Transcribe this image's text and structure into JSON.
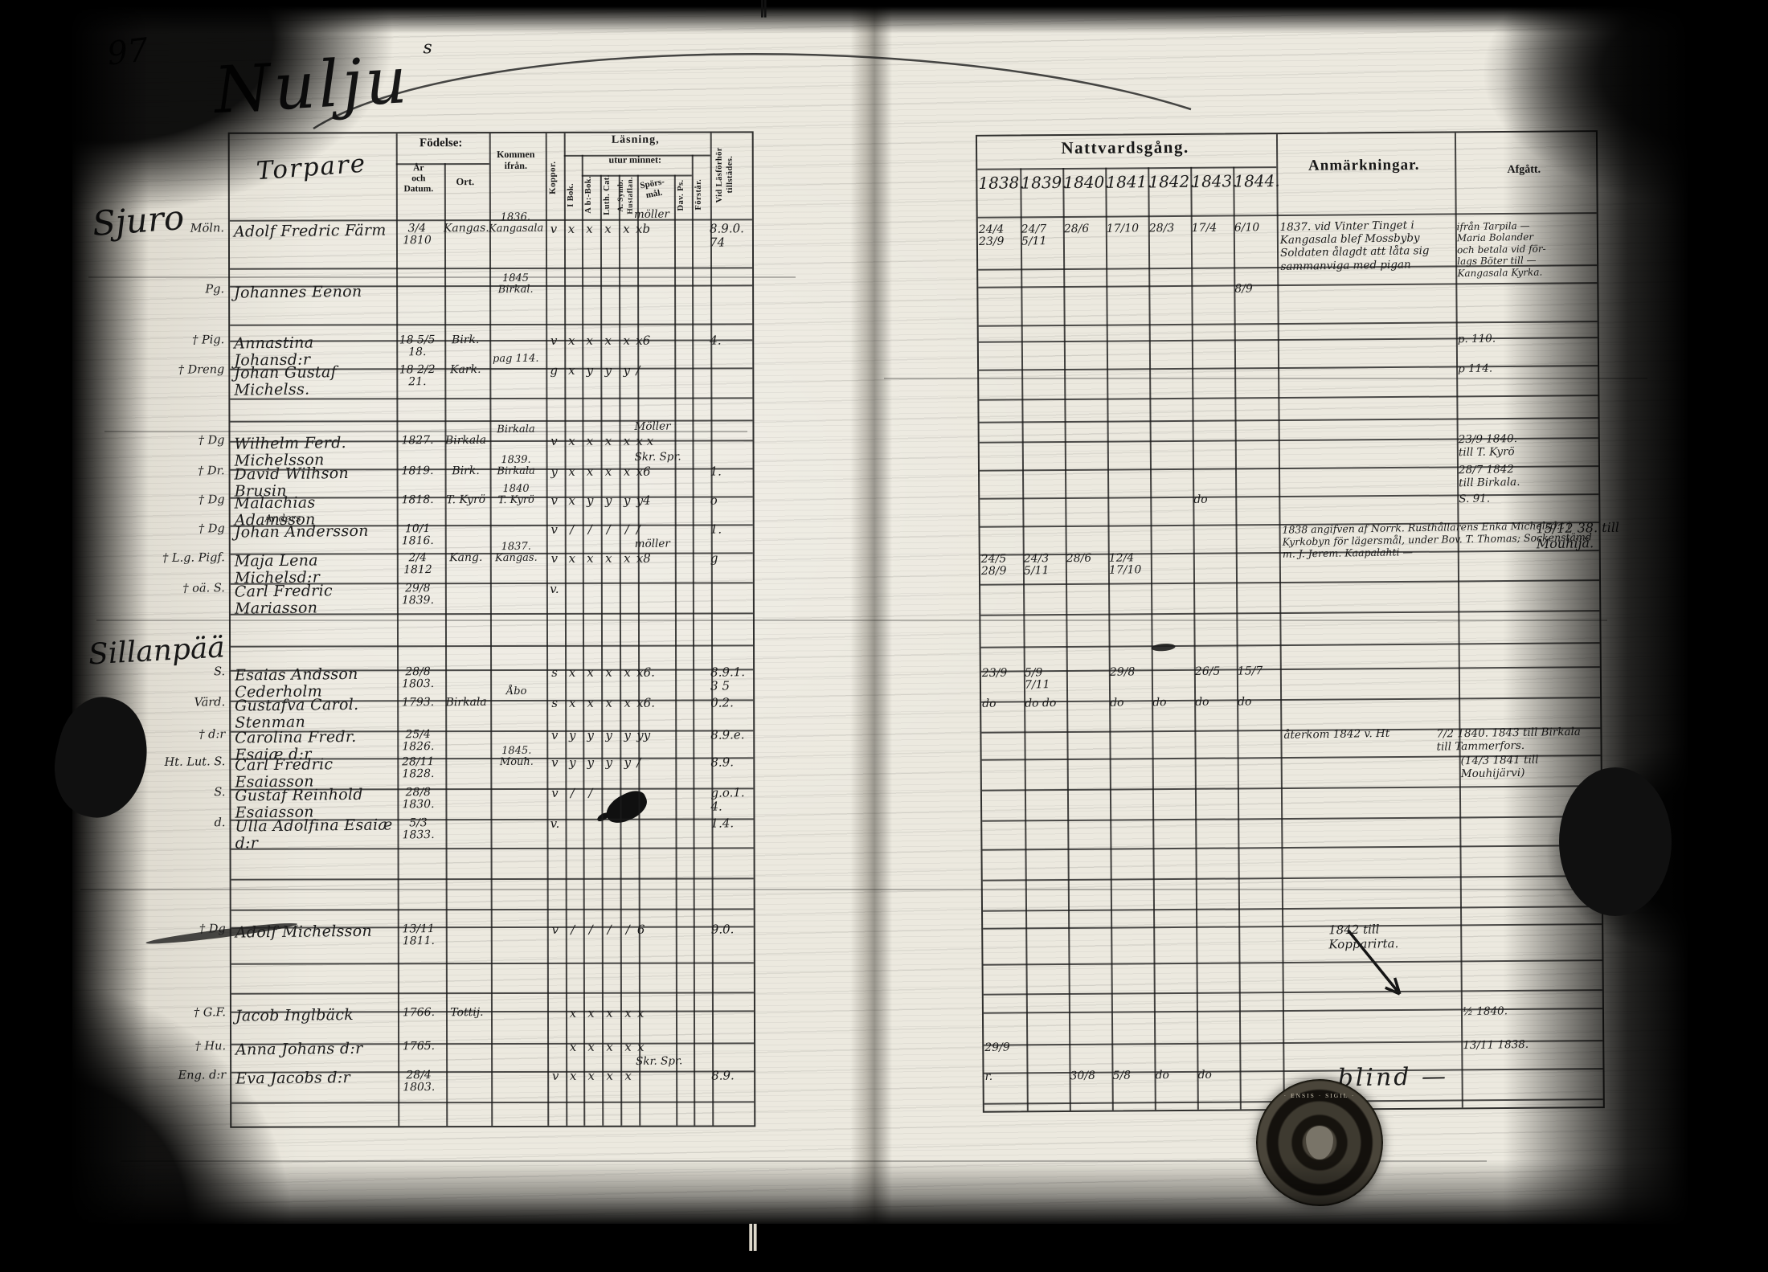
{
  "page": {
    "number": "97",
    "title": "Nulju",
    "title_sup": "s",
    "spine_mark_top": "‖",
    "spine_mark_bottom": "‖"
  },
  "left_table": {
    "section1": "Sjuro",
    "section2": "Sillanpää",
    "headers": {
      "group": "Torpare",
      "fodelse": "Födelse:",
      "ar": "År\noch\nDatum.",
      "ort": "Ort.",
      "kommen": "Kommen\nifrån.",
      "koppor": "Koppor.",
      "lasning": "Läsning,",
      "utur": "utur minnet:",
      "ibok": "I Bok.",
      "abbok": "A b:-Bok.",
      "luth": "Luth. Cat.",
      "symb": "A. Symb.\nHustaflan.",
      "spors": "Spörs-\nmål.",
      "davps": "Dav. Ps.",
      "forstar": "Förstår.",
      "tillstades": "Vid Läsförhör\ntillstädes."
    },
    "rows": [
      {
        "m": "Möln.",
        "name": "Adolf Fredric Färm",
        "date": "3/4 1810",
        "ort": "Kangas.",
        "kommen": "1836.\nKangasala",
        "kop": "v",
        "m1": "x",
        "m2": "x",
        "m3": "x",
        "m4": "x",
        "sp": "xb",
        "note": "möller",
        "t1": "8.9.0.",
        "t2": "74"
      },
      {
        "m": "Pg.",
        "name": "Johannes Eenon",
        "kommen": "1845\nBirkal."
      },
      {
        "m": "† Pig.",
        "name": "Annastina Johansd:r",
        "date": "18 5/5 18.",
        "ort": "Birk.",
        "kop": "v",
        "m1": "x",
        "m2": "x",
        "m3": "x",
        "m4": "x",
        "sp": "x6",
        "t1": "4."
      },
      {
        "m": "† Dreng",
        "name": "Johan Gustaf Michelss.",
        "date": "18 2/2 21.",
        "ort": "Kark.",
        "kommen": "pag 114.",
        "kop": "g",
        "m1": "x",
        "m2": "y",
        "m3": "y",
        "m4": "y",
        "sp": "/"
      },
      {
        "m": "† Dg",
        "name": "Wilhelm Ferd. Michelsson",
        "date": "1827.",
        "ort": "Birkala",
        "kommen": "Birkala",
        "kop": "v",
        "m1": "x",
        "m2": "x",
        "m3": "x",
        "m4": "x",
        "sp": "x x",
        "note": "Möller"
      },
      {
        "m": "† Dr.",
        "name": "David Wilhson Brusin",
        "date": "1819.",
        "ort": "Birk.",
        "kommen": "1839.\nBirkala",
        "kop": "y",
        "m1": "x",
        "m2": "x",
        "m3": "x",
        "m4": "x",
        "sp": "x6",
        "note": "Skr. Spr.",
        "t1": "1."
      },
      {
        "m": "† Dg",
        "name": "Malachias Adamsson",
        "date": "1818.",
        "ort": "T. Kyrö",
        "kommen": "1840\nT. Kyrö",
        "kop": "v",
        "m1": "x",
        "m2": "y",
        "m3": "y",
        "m4": "y",
        "sp": "y4",
        "t1": "o"
      },
      {
        "m": "† Dg",
        "name": "Johan Andersson",
        "above": "Anders",
        "date": "10/1 1816.",
        "kop": "v",
        "m1": "/",
        "m2": "/",
        "m3": "/",
        "m4": "/",
        "sp": "/",
        "t1": "1."
      },
      {
        "m": "† L.g. Pigf.",
        "name": "Maja Lena Michelsd:r",
        "date": "2/4 1812",
        "ort": "Kang.",
        "kommen": "1837.\nKangas.",
        "kop": "v",
        "m1": "x",
        "m2": "x",
        "m3": "x",
        "m4": "x",
        "sp": "x8",
        "note": "möller",
        "t1": "g"
      },
      {
        "m": "† oä. S.",
        "name": "Carl Fredric Mariasson",
        "date": "29/8 1839.",
        "kop": "v."
      },
      {
        "m": "S.",
        "name": "Esaias Andsson Cederholm",
        "date": "28/8 1803.",
        "kop": "s",
        "m1": "x",
        "m2": "x",
        "m3": "x",
        "m4": "x",
        "sp": "x6.",
        "t1": "8.9.1.",
        "t2": "3 5"
      },
      {
        "m": "Värd.",
        "name": "Gustafva Carol. Stenman",
        "date": "1793.",
        "ort": "Birkala",
        "kommen": "Åbo",
        "kop": "s",
        "m1": "x",
        "m2": "x",
        "m3": "x",
        "m4": "x",
        "sp": "x6.",
        "t1": "0.2."
      },
      {
        "m": "† d:r",
        "name": "Carolina Fredr. Esaiæ d:r",
        "date": "25/4 1826.",
        "kop": "v",
        "m1": "y",
        "m2": "y",
        "m3": "y",
        "m4": "y",
        "sp": "yy",
        "t1": "8.9.e."
      },
      {
        "m": "Ht. Lut. S.",
        "name": "Carl Fredric Esaiasson",
        "date": "28/11 1828.",
        "kommen": "1845.\nMouh.",
        "kop": "v",
        "m1": "y",
        "m2": "y",
        "m3": "y",
        "m4": "y",
        "sp": "/",
        "t1": "8.9."
      },
      {
        "m": "S.",
        "name": "Gustaf Reinhold Esaiasson",
        "date": "28/8 1830.",
        "kop": "v",
        "m1": "/",
        "m2": "/",
        "t1": "g.o.1.",
        "t2": "4."
      },
      {
        "m": "d.",
        "name": "Ulla Adolfina Esaiæ d:r",
        "date": "5/3 1833.",
        "kop": "v.",
        "t1": "1.4."
      },
      {
        "m": "† Dg",
        "name": "Adolf Michelsson",
        "date": "13/11 1811.",
        "kop": "v",
        "m1": "/",
        "m2": "/",
        "m3": "/",
        "m4": "/",
        "sp": "6",
        "t1": "9.0."
      },
      {
        "m": "† G.F.",
        "name": "Jacob Inglbäck",
        "date": "1766.",
        "ort": "Tottij.",
        "m1": "x",
        "m2": "x",
        "m3": "x",
        "m4": "x",
        "sp": "x"
      },
      {
        "m": "† Hu.",
        "name": "Anna Johans d:r",
        "date": "1765.",
        "m1": "x",
        "m2": "x",
        "m3": "x",
        "m4": "x",
        "sp": "x"
      },
      {
        "m": "Eng. d:r",
        "name": "Eva Jacobs d:r",
        "date": "28/4 1803.",
        "kop": "v",
        "m1": "x",
        "m2": "x",
        "m3": "x",
        "m4": "x",
        "note": "Skr. Spr.",
        "t1": "8.9."
      }
    ]
  },
  "right_table": {
    "title": "Nattvardsgång.",
    "anm_label": "Anmärkningar.",
    "afg_label": "Afgått.",
    "years": [
      "1838.",
      "1839.",
      "1840.",
      "1841.",
      "1842.",
      "1843.",
      "1844."
    ],
    "rows": [
      {
        "y0": "24/4 23/9",
        "y1": "24/7 5/11",
        "y2": "28/6",
        "y3": "17/10",
        "y4": "28/3",
        "y5": "17/4",
        "y6": "6/10",
        "anm": "1837. vid Vinter Tinget i Kangasala blef Mossbyby Soldaten ålagdt att låta sig sammanviga med pigan",
        "afg": "ifrån Tarpila —\nMaria Bolander\noch betala vid för-\nlags Böter till —\nKangasala Kyrka."
      },
      {
        "y6": "8/9"
      },
      {
        "afg": "p. 110."
      },
      {
        "afg": "p 114."
      },
      {
        "afg": "23/9 1840.\ntill T. Kyrö"
      },
      {
        "afg": "28/7 1842\ntill Birkala."
      },
      {
        "y5": "do",
        "afg": "S. 91."
      },
      {
        "anm": "1838 angifven af Norrk. Rusthållarens Enka Michelsd:t i Kyrkobyn för lägersmål, under Bov. T. Thomas; Sockenstämd m. J. Jerem. Kaapalahti —",
        "afg": "15/12 38. till\nMouhijä."
      },
      {
        "y0": "24/5 28/9",
        "y1": "24/3 5/11",
        "y2": "28/6",
        "y3": "12/4 17/10"
      },
      {},
      {
        "y0": "23/9",
        "y1": "5/9 7/11",
        "y3": "29/8",
        "y5": "26/5",
        "y6": "15/7"
      },
      {
        "y0": "do",
        "y1": "do  do",
        "y3": "do",
        "y4": "do",
        "y5": "do",
        "y6": "do"
      },
      {
        "anm": "återkom 1842 v. Ht",
        "afg": "7/2 1840.  1843 till Birkala\ntill Tammerfors."
      },
      {
        "afg": "(14/3 1841 till\nMouhijärvi)"
      },
      {},
      {},
      {
        "afg": "1842 till\nKopparirta."
      },
      {
        "afg": "½ 1840."
      },
      {
        "y0": "29/9",
        "afg": "13/11 1838."
      },
      {
        "y0": "r.",
        "y2": "30/8",
        "y3": "5/8",
        "y4": "do",
        "y5": "do",
        "anm": "blind —"
      }
    ]
  },
  "seal": {
    "ring_text": "· ENSIS · SIGIL ·"
  }
}
